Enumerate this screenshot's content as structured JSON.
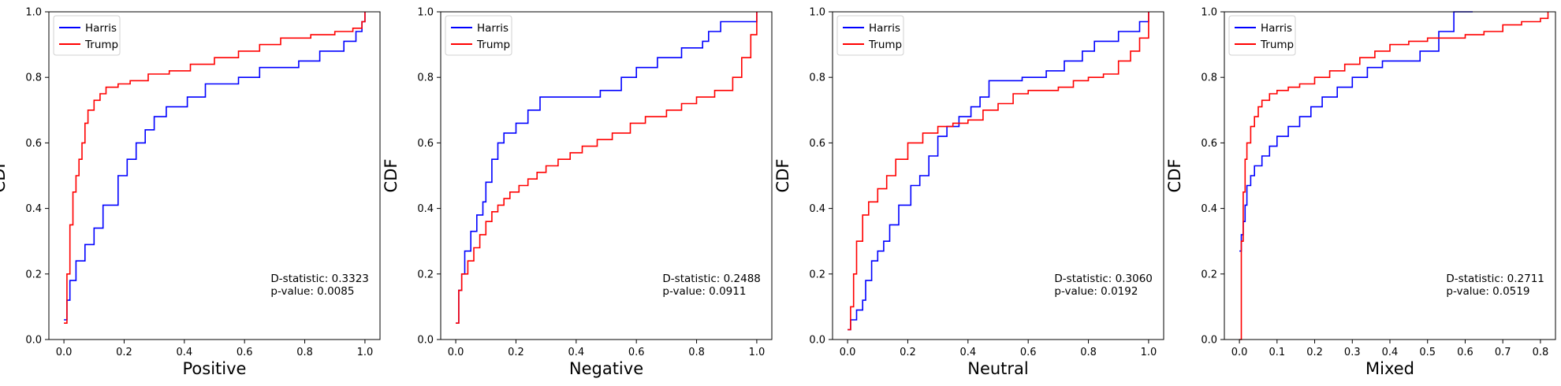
{
  "chart_data": [
    {
      "type": "line",
      "xlabel": "Positive",
      "ylabel": "CDF",
      "xlim": [
        -0.05,
        1.05
      ],
      "ylim": [
        0,
        1
      ],
      "xticks": [
        0.0,
        0.2,
        0.4,
        0.6,
        0.8,
        1.0
      ],
      "xtick_labels": [
        "0.0",
        "0.2",
        "0.4",
        "0.6",
        "0.8",
        "1.0"
      ],
      "yticks": [
        0.0,
        0.2,
        0.4,
        0.6,
        0.8,
        1.0
      ],
      "ytick_labels": [
        "0.0",
        "0.2",
        "0.4",
        "0.6",
        "0.8",
        "1.0"
      ],
      "legend_position": "top-left",
      "annotation": [
        "D-statistic: 0.3323",
        "p-value: 0.0085"
      ],
      "series": [
        {
          "name": "Harris",
          "color": "#0000ff",
          "x": [
            0,
            0.01,
            0.02,
            0.04,
            0.07,
            0.1,
            0.13,
            0.18,
            0.21,
            0.24,
            0.27,
            0.3,
            0.34,
            0.41,
            0.47,
            0.58,
            0.65,
            0.78,
            0.85,
            0.93,
            0.97,
            0.99,
            1.0
          ],
          "y": [
            0.06,
            0.12,
            0.18,
            0.24,
            0.29,
            0.34,
            0.41,
            0.5,
            0.55,
            0.6,
            0.64,
            0.68,
            0.71,
            0.74,
            0.78,
            0.8,
            0.83,
            0.85,
            0.88,
            0.91,
            0.94,
            0.97,
            1.0
          ]
        },
        {
          "name": "Trump",
          "color": "#ff0000",
          "x": [
            0,
            0.01,
            0.02,
            0.03,
            0.04,
            0.05,
            0.06,
            0.07,
            0.08,
            0.1,
            0.12,
            0.14,
            0.18,
            0.22,
            0.28,
            0.35,
            0.42,
            0.5,
            0.58,
            0.65,
            0.72,
            0.82,
            0.9,
            0.96,
            0.99,
            1.0
          ],
          "y": [
            0.05,
            0.2,
            0.35,
            0.45,
            0.5,
            0.55,
            0.6,
            0.66,
            0.7,
            0.73,
            0.75,
            0.77,
            0.78,
            0.79,
            0.81,
            0.82,
            0.84,
            0.86,
            0.88,
            0.9,
            0.92,
            0.93,
            0.94,
            0.95,
            0.97,
            1.0
          ]
        }
      ]
    },
    {
      "type": "line",
      "xlabel": "Negative",
      "ylabel": "CDF",
      "xlim": [
        -0.05,
        1.05
      ],
      "ylim": [
        0,
        1
      ],
      "xticks": [
        0.0,
        0.2,
        0.4,
        0.6,
        0.8,
        1.0
      ],
      "xtick_labels": [
        "0.0",
        "0.2",
        "0.4",
        "0.6",
        "0.8",
        "1.0"
      ],
      "yticks": [
        0.0,
        0.2,
        0.4,
        0.6,
        0.8,
        1.0
      ],
      "ytick_labels": [
        "0.0",
        "0.2",
        "0.4",
        "0.6",
        "0.8",
        "1.0"
      ],
      "legend_position": "top-left",
      "annotation": [
        "D-statistic: 0.2488",
        "p-value: 0.0911"
      ],
      "series": [
        {
          "name": "Harris",
          "color": "#0000ff",
          "x": [
            0,
            0.01,
            0.02,
            0.03,
            0.05,
            0.07,
            0.09,
            0.1,
            0.12,
            0.14,
            0.16,
            0.2,
            0.24,
            0.28,
            0.36,
            0.48,
            0.55,
            0.6,
            0.67,
            0.75,
            0.82,
            0.84,
            0.88,
            1.0
          ],
          "y": [
            0.05,
            0.15,
            0.2,
            0.27,
            0.33,
            0.38,
            0.42,
            0.48,
            0.55,
            0.6,
            0.63,
            0.66,
            0.7,
            0.74,
            0.74,
            0.76,
            0.8,
            0.83,
            0.86,
            0.89,
            0.91,
            0.94,
            0.97,
            1.0
          ]
        },
        {
          "name": "Trump",
          "color": "#ff0000",
          "x": [
            0,
            0.01,
            0.02,
            0.04,
            0.06,
            0.08,
            0.1,
            0.12,
            0.14,
            0.16,
            0.18,
            0.21,
            0.24,
            0.27,
            0.3,
            0.34,
            0.38,
            0.42,
            0.47,
            0.52,
            0.58,
            0.63,
            0.7,
            0.75,
            0.8,
            0.86,
            0.92,
            0.95,
            0.98,
            1.0
          ],
          "y": [
            0.05,
            0.15,
            0.2,
            0.24,
            0.28,
            0.32,
            0.36,
            0.39,
            0.41,
            0.43,
            0.45,
            0.47,
            0.49,
            0.51,
            0.53,
            0.55,
            0.57,
            0.59,
            0.61,
            0.63,
            0.66,
            0.68,
            0.7,
            0.72,
            0.74,
            0.76,
            0.8,
            0.86,
            0.93,
            1.0
          ]
        }
      ]
    },
    {
      "type": "line",
      "xlabel": "Neutral",
      "ylabel": "CDF",
      "xlim": [
        -0.05,
        1.05
      ],
      "ylim": [
        0,
        1
      ],
      "xticks": [
        0.0,
        0.2,
        0.4,
        0.6,
        0.8,
        1.0
      ],
      "xtick_labels": [
        "0.0",
        "0.2",
        "0.4",
        "0.6",
        "0.8",
        "1.0"
      ],
      "yticks": [
        0.0,
        0.2,
        0.4,
        0.6,
        0.8,
        1.0
      ],
      "ytick_labels": [
        "0.0",
        "0.2",
        "0.4",
        "0.6",
        "0.8",
        "1.0"
      ],
      "legend_position": "top-left",
      "annotation": [
        "D-statistic: 0.3060",
        "p-value: 0.0192"
      ],
      "series": [
        {
          "name": "Harris",
          "color": "#0000ff",
          "x": [
            0,
            0.01,
            0.03,
            0.05,
            0.06,
            0.08,
            0.1,
            0.12,
            0.14,
            0.17,
            0.21,
            0.24,
            0.27,
            0.3,
            0.33,
            0.37,
            0.41,
            0.44,
            0.47,
            0.58,
            0.66,
            0.72,
            0.78,
            0.82,
            0.9,
            0.97,
            1.0
          ],
          "y": [
            0.03,
            0.06,
            0.09,
            0.12,
            0.18,
            0.24,
            0.27,
            0.3,
            0.35,
            0.41,
            0.47,
            0.5,
            0.56,
            0.62,
            0.65,
            0.68,
            0.71,
            0.74,
            0.79,
            0.8,
            0.82,
            0.85,
            0.88,
            0.91,
            0.94,
            0.97,
            1.0
          ]
        },
        {
          "name": "Trump",
          "color": "#ff0000",
          "x": [
            0,
            0.01,
            0.02,
            0.03,
            0.05,
            0.07,
            0.1,
            0.13,
            0.16,
            0.2,
            0.25,
            0.3,
            0.35,
            0.4,
            0.45,
            0.5,
            0.55,
            0.6,
            0.65,
            0.7,
            0.75,
            0.8,
            0.85,
            0.9,
            0.94,
            0.97,
            1.0
          ],
          "y": [
            0.03,
            0.1,
            0.2,
            0.3,
            0.38,
            0.42,
            0.46,
            0.5,
            0.55,
            0.6,
            0.63,
            0.65,
            0.66,
            0.67,
            0.7,
            0.72,
            0.75,
            0.76,
            0.76,
            0.77,
            0.79,
            0.8,
            0.81,
            0.85,
            0.88,
            0.92,
            1.0
          ]
        }
      ]
    },
    {
      "type": "line",
      "xlabel": "Mixed",
      "ylabel": "CDF",
      "xlim": [
        -0.04,
        0.84
      ],
      "ylim": [
        0,
        1
      ],
      "xticks": [
        0.0,
        0.1,
        0.2,
        0.3,
        0.4,
        0.5,
        0.6,
        0.7,
        0.8
      ],
      "xtick_labels": [
        "0.0",
        "0.1",
        "0.2",
        "0.3",
        "0.4",
        "0.5",
        "0.6",
        "0.7",
        "0.8"
      ],
      "yticks": [
        0.0,
        0.2,
        0.4,
        0.6,
        0.8,
        1.0
      ],
      "ytick_labels": [
        "0.0",
        "0.2",
        "0.4",
        "0.6",
        "0.8",
        "1.0"
      ],
      "legend_position": "top-left",
      "annotation": [
        "D-statistic: 0.2711",
        "p-value: 0.0519"
      ],
      "series": [
        {
          "name": "Harris",
          "color": "#0000ff",
          "x": [
            0,
            0.005,
            0.01,
            0.015,
            0.02,
            0.03,
            0.04,
            0.06,
            0.08,
            0.1,
            0.13,
            0.16,
            0.19,
            0.22,
            0.26,
            0.3,
            0.34,
            0.38,
            0.48,
            0.53,
            0.57,
            0.62
          ],
          "y": [
            0.27,
            0.32,
            0.36,
            0.41,
            0.47,
            0.5,
            0.53,
            0.56,
            0.59,
            0.62,
            0.65,
            0.68,
            0.71,
            0.74,
            0.77,
            0.8,
            0.83,
            0.85,
            0.88,
            0.94,
            1.0,
            1.0
          ]
        },
        {
          "name": "Trump",
          "color": "#ff0000",
          "x": [
            0,
            0.005,
            0.01,
            0.015,
            0.02,
            0.03,
            0.04,
            0.05,
            0.06,
            0.08,
            0.1,
            0.13,
            0.16,
            0.2,
            0.24,
            0.28,
            0.32,
            0.36,
            0.4,
            0.45,
            0.5,
            0.55,
            0.6,
            0.65,
            0.7,
            0.75,
            0.8,
            0.82
          ],
          "y": [
            0.0,
            0.3,
            0.45,
            0.55,
            0.6,
            0.65,
            0.68,
            0.71,
            0.73,
            0.75,
            0.76,
            0.77,
            0.78,
            0.8,
            0.82,
            0.84,
            0.86,
            0.88,
            0.9,
            0.91,
            0.92,
            0.92,
            0.93,
            0.94,
            0.96,
            0.97,
            0.98,
            1.0
          ]
        }
      ]
    }
  ]
}
